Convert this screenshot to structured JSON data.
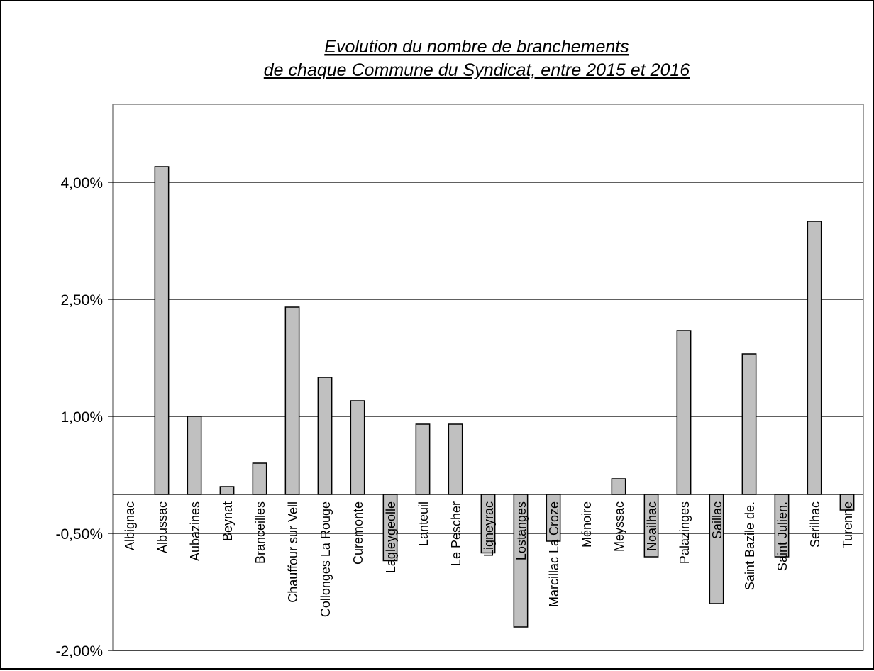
{
  "colors": {
    "bar_fill": "#c0c0c0",
    "bar_stroke": "#000000",
    "grid": "#000000",
    "plot_border": "#808080",
    "background": "#ffffff"
  },
  "chart_data": {
    "type": "bar",
    "title": [
      "Evolution du nombre de branchements",
      "de chaque Commune du Syndicat, entre 2015 et 2016"
    ],
    "xlabel": "",
    "ylabel": "",
    "ylim": [
      -2.0,
      5.0
    ],
    "yticks": [
      -2.0,
      -0.5,
      1.0,
      2.5,
      4.0
    ],
    "ytick_labels": [
      "-2,00%",
      "-0,50%",
      "1,00%",
      "2,50%",
      "4,00%"
    ],
    "grid": true,
    "legend": "none",
    "categories": [
      "Albignac",
      "Albussac",
      "Aubazines",
      "Beynat",
      "Branceilles",
      "Chauffour sur Vell",
      "Collonges La Rouge",
      "Curemonte",
      "Lagleygeolle",
      "Lanteuil",
      "Le Pescher",
      "Ligneyrac",
      "Lostanges",
      "Marcillac La Croze",
      "Ménoire",
      "Meyssac",
      "Noailhac",
      "Palazinges",
      "Saillac",
      "Saint Bazile de.",
      "Saint Julien.",
      "Serilhac",
      "Turenne"
    ],
    "values": [
      0.0,
      4.2,
      1.0,
      0.1,
      0.4,
      2.4,
      1.5,
      1.2,
      -0.85,
      0.9,
      0.9,
      -0.75,
      -1.7,
      -0.6,
      0.0,
      0.2,
      -0.8,
      2.1,
      -1.4,
      1.8,
      -0.8,
      3.5,
      -0.2
    ]
  }
}
